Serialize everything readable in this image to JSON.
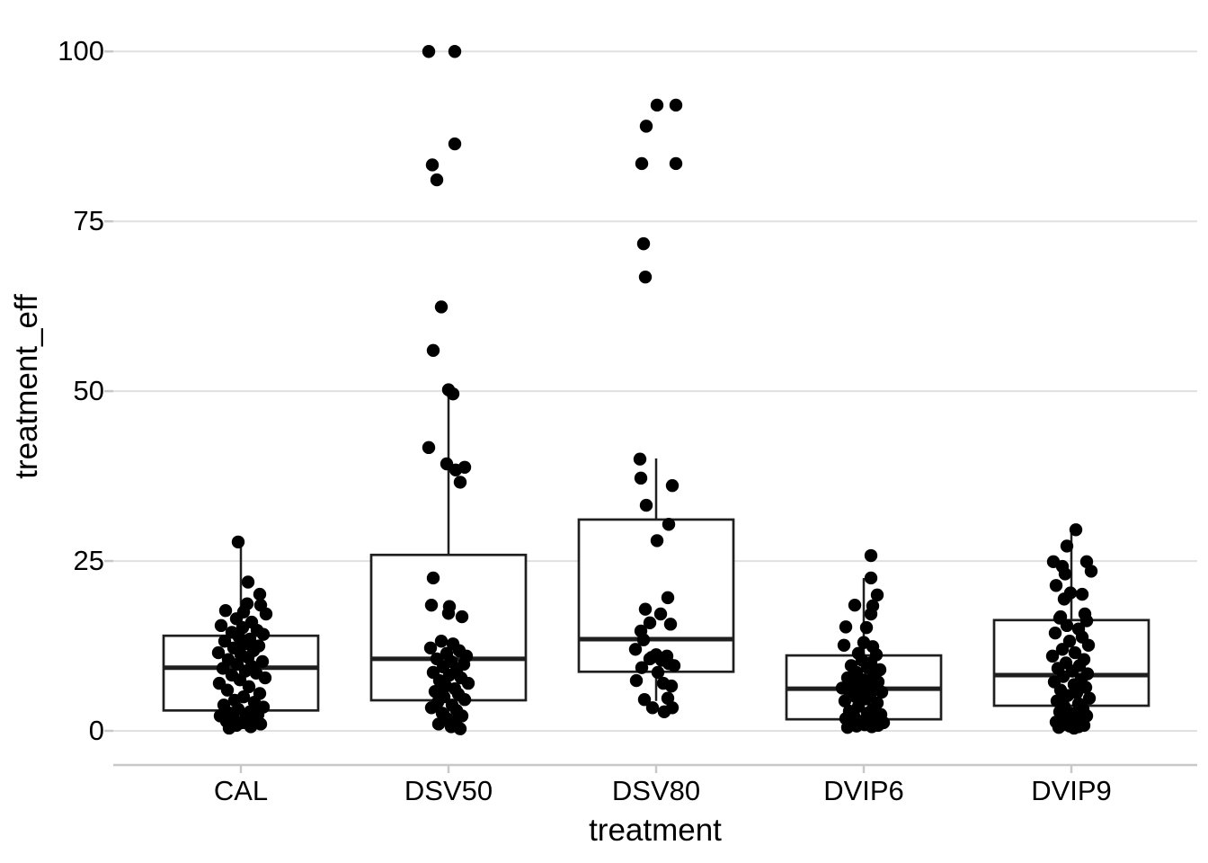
{
  "chart_data": {
    "type": "boxplot",
    "overlay": "jittered points",
    "title": "",
    "xlabel": "treatment",
    "ylabel": "treatment_eff",
    "categories": [
      "CAL",
      "DSV50",
      "DSV80",
      "DVIP6",
      "DVIP9"
    ],
    "yticks": [
      0,
      25,
      50,
      75,
      100
    ],
    "ylim": [
      0,
      102
    ],
    "grid": "horizontal major gridlines only",
    "legend": "none",
    "colors": {
      "background": "#ffffff",
      "gridline": "#e0e0e0",
      "axis_line": "#c8c8c8",
      "box_stroke": "#1f1f1f",
      "point_fill": "#000000",
      "text": "#000000"
    },
    "boxes": [
      {
        "category": "CAL",
        "q1": 3.0,
        "median": 9.3,
        "q3": 14.0,
        "whisker_low": 0.3,
        "whisker_high": 27.8
      },
      {
        "category": "DSV50",
        "q1": 4.5,
        "median": 10.6,
        "q3": 25.9,
        "whisker_low": 0.3,
        "whisker_high": 50.0
      },
      {
        "category": "DSV80",
        "q1": 8.7,
        "median": 13.5,
        "q3": 31.1,
        "whisker_low": 4.4,
        "whisker_high": 40.1
      },
      {
        "category": "DVIP6",
        "q1": 1.7,
        "median": 6.2,
        "q3": 11.1,
        "whisker_low": 0.3,
        "whisker_high": 22.5
      },
      {
        "category": "DVIP9",
        "q1": 3.7,
        "median": 8.2,
        "q3": 16.3,
        "whisker_low": 0.4,
        "whisker_high": 29.5
      }
    ],
    "points": {
      "CAL": [
        [
          -3,
          27.8
        ],
        [
          8,
          21.9
        ],
        [
          21,
          20.1
        ],
        [
          7,
          18.7
        ],
        [
          22,
          18.5
        ],
        [
          -17,
          17.7
        ],
        [
          3,
          17.5
        ],
        [
          28,
          17.2
        ],
        [
          -5,
          16.5
        ],
        [
          12,
          16.0
        ],
        [
          -22,
          15.5
        ],
        [
          2,
          15.2
        ],
        [
          18,
          14.8
        ],
        [
          -10,
          14.5
        ],
        [
          25,
          14.2
        ],
        [
          -2,
          13.8
        ],
        [
          10,
          13.5
        ],
        [
          -18,
          13.2
        ],
        [
          4,
          12.8
        ],
        [
          20,
          12.5
        ],
        [
          -8,
          12.2
        ],
        [
          14,
          11.8
        ],
        [
          -25,
          11.5
        ],
        [
          0,
          11.2
        ],
        [
          8,
          10.8
        ],
        [
          -14,
          10.5
        ],
        [
          24,
          10.2
        ],
        [
          -4,
          9.8
        ],
        [
          12,
          9.5
        ],
        [
          -20,
          9.2
        ],
        [
          5,
          8.8
        ],
        [
          17,
          8.5
        ],
        [
          -10,
          8.2
        ],
        [
          27,
          7.8
        ],
        [
          -1,
          7.5
        ],
        [
          -24,
          7.0
        ],
        [
          9,
          6.5
        ],
        [
          -15,
          6.0
        ],
        [
          21,
          5.5
        ],
        [
          3,
          5.0
        ],
        [
          -7,
          4.5
        ],
        [
          15,
          4.2
        ],
        [
          -19,
          3.8
        ],
        [
          25,
          3.5
        ],
        [
          -3,
          3.2
        ],
        [
          10,
          2.8
        ],
        [
          -12,
          2.6
        ],
        [
          19,
          2.4
        ],
        [
          -23,
          2.2
        ],
        [
          6,
          2.0
        ],
        [
          -8,
          1.8
        ],
        [
          14,
          1.6
        ],
        [
          -16,
          1.4
        ],
        [
          2,
          1.2
        ],
        [
          22,
          1.0
        ],
        [
          -5,
          0.8
        ],
        [
          11,
          0.6
        ],
        [
          -13,
          0.4
        ]
      ],
      "DSV50": [
        [
          -22,
          100
        ],
        [
          7,
          100
        ],
        [
          7,
          86.4
        ],
        [
          -18,
          83.3
        ],
        [
          -13,
          81.1
        ],
        [
          -8,
          62.4
        ],
        [
          -17,
          56.0
        ],
        [
          0,
          50.2
        ],
        [
          5,
          49.6
        ],
        [
          -22,
          41.7
        ],
        [
          -2,
          39.3
        ],
        [
          18,
          38.8
        ],
        [
          8,
          38.4
        ],
        [
          13,
          36.6
        ],
        [
          -17,
          22.5
        ],
        [
          -19,
          18.5
        ],
        [
          1,
          18.3
        ],
        [
          0,
          17.3
        ],
        [
          15,
          16.8
        ],
        [
          -8,
          13.2
        ],
        [
          5,
          12.8
        ],
        [
          -20,
          12.2
        ],
        [
          12,
          11.8
        ],
        [
          -2,
          11.4
        ],
        [
          20,
          11.0
        ],
        [
          -13,
          10.6
        ],
        [
          3,
          10.2
        ],
        [
          17,
          9.8
        ],
        [
          -6,
          9.4
        ],
        [
          9,
          9.0
        ],
        [
          -17,
          8.6
        ],
        [
          1,
          8.2
        ],
        [
          14,
          7.8
        ],
        [
          -10,
          7.4
        ],
        [
          22,
          7.0
        ],
        [
          -3,
          6.6
        ],
        [
          7,
          6.2
        ],
        [
          -15,
          5.8
        ],
        [
          11,
          5.4
        ],
        [
          -5,
          5.0
        ],
        [
          18,
          4.6
        ],
        [
          -12,
          4.2
        ],
        [
          4,
          3.8
        ],
        [
          -19,
          3.4
        ],
        [
          9,
          3.0
        ],
        [
          -7,
          2.6
        ],
        [
          15,
          2.2
        ],
        [
          -2,
          1.8
        ],
        [
          8,
          1.4
        ],
        [
          -11,
          1.0
        ],
        [
          3,
          0.6
        ],
        [
          13,
          0.3
        ]
      ],
      "DSV80": [
        [
          1,
          92.1
        ],
        [
          22,
          92.1
        ],
        [
          -11,
          89.0
        ],
        [
          -16,
          83.5
        ],
        [
          22,
          83.5
        ],
        [
          -14,
          71.7
        ],
        [
          -12,
          66.8
        ],
        [
          -18,
          40.0
        ],
        [
          -17,
          37.2
        ],
        [
          18,
          36.1
        ],
        [
          -11,
          33.2
        ],
        [
          14,
          30.4
        ],
        [
          1,
          28.0
        ],
        [
          13,
          19.6
        ],
        [
          -12,
          17.9
        ],
        [
          5,
          17.2
        ],
        [
          -7,
          15.9
        ],
        [
          16,
          15.7
        ],
        [
          -17,
          14.7
        ],
        [
          -14,
          13.4
        ],
        [
          -23,
          12.0
        ],
        [
          0,
          11.2
        ],
        [
          12,
          11.0
        ],
        [
          -5,
          10.8
        ],
        [
          -7,
          10.6
        ],
        [
          6,
          10.4
        ],
        [
          14,
          9.9
        ],
        [
          20,
          9.6
        ],
        [
          -16,
          9.3
        ],
        [
          2,
          8.6
        ],
        [
          -22,
          7.4
        ],
        [
          8,
          7.0
        ],
        [
          17,
          6.6
        ],
        [
          13,
          4.8
        ],
        [
          -13,
          4.6
        ],
        [
          -4,
          3.4
        ],
        [
          18,
          3.4
        ],
        [
          9,
          2.8
        ]
      ],
      "DVIP6": [
        [
          8,
          25.8
        ],
        [
          8,
          22.5
        ],
        [
          15,
          20.0
        ],
        [
          -10,
          18.5
        ],
        [
          10,
          18.4
        ],
        [
          8,
          17.2
        ],
        [
          -20,
          15.3
        ],
        [
          3,
          15.2
        ],
        [
          0,
          13.0
        ],
        [
          -22,
          12.6
        ],
        [
          10,
          12.4
        ],
        [
          -6,
          11.4
        ],
        [
          14,
          11.2
        ],
        [
          -2,
          10.4
        ],
        [
          8,
          10.0
        ],
        [
          -14,
          9.6
        ],
        [
          4,
          9.3
        ],
        [
          18,
          9.0
        ],
        [
          -8,
          8.6
        ],
        [
          11,
          8.2
        ],
        [
          -18,
          7.8
        ],
        [
          0,
          7.5
        ],
        [
          16,
          7.2
        ],
        [
          -11,
          6.9
        ],
        [
          5,
          6.6
        ],
        [
          -24,
          6.3
        ],
        [
          13,
          6.1
        ],
        [
          -4,
          5.9
        ],
        [
          20,
          5.7
        ],
        [
          -15,
          5.5
        ],
        [
          7,
          5.3
        ],
        [
          -9,
          5.0
        ],
        [
          2,
          4.7
        ],
        [
          -21,
          4.4
        ],
        [
          15,
          4.1
        ],
        [
          -6,
          3.6
        ],
        [
          10,
          3.2
        ],
        [
          -16,
          2.9
        ],
        [
          4,
          2.6
        ],
        [
          19,
          2.4
        ],
        [
          -11,
          2.2
        ],
        [
          7,
          2.0
        ],
        [
          -20,
          1.8
        ],
        [
          13,
          1.6
        ],
        [
          -3,
          1.4
        ],
        [
          22,
          1.2
        ],
        [
          -14,
          1.0
        ],
        [
          1,
          0.9
        ],
        [
          16,
          0.8
        ],
        [
          -8,
          0.7
        ],
        [
          9,
          0.6
        ],
        [
          -18,
          0.5
        ]
      ],
      "DVIP9": [
        [
          5,
          29.6
        ],
        [
          -5,
          27.2
        ],
        [
          -20,
          24.9
        ],
        [
          17,
          24.9
        ],
        [
          -10,
          24.2
        ],
        [
          22,
          23.5
        ],
        [
          -7,
          23.1
        ],
        [
          -17,
          21.4
        ],
        [
          -1,
          20.3
        ],
        [
          12,
          20.1
        ],
        [
          -8,
          19.4
        ],
        [
          15,
          17.2
        ],
        [
          -12,
          16.8
        ],
        [
          -13,
          16.6
        ],
        [
          17,
          16.2
        ],
        [
          -5,
          15.5
        ],
        [
          8,
          15.0
        ],
        [
          -18,
          14.4
        ],
        [
          12,
          13.8
        ],
        [
          -2,
          13.2
        ],
        [
          19,
          12.6
        ],
        [
          -10,
          12.0
        ],
        [
          4,
          11.5
        ],
        [
          -21,
          11.0
        ],
        [
          14,
          10.5
        ],
        [
          -6,
          10.0
        ],
        [
          9,
          9.6
        ],
        [
          -15,
          9.2
        ],
        [
          1,
          8.8
        ],
        [
          18,
          8.4
        ],
        [
          -9,
          8.0
        ],
        [
          11,
          7.6
        ],
        [
          -19,
          7.2
        ],
        [
          3,
          6.8
        ],
        [
          16,
          6.4
        ],
        [
          -12,
          6.0
        ],
        [
          6,
          5.6
        ],
        [
          -4,
          5.2
        ],
        [
          20,
          4.8
        ],
        [
          -16,
          4.4
        ],
        [
          8,
          4.0
        ],
        [
          -8,
          3.6
        ],
        [
          13,
          3.2
        ],
        [
          -13,
          2.8
        ],
        [
          2,
          2.5
        ],
        [
          17,
          2.2
        ],
        [
          -6,
          1.9
        ],
        [
          10,
          1.6
        ],
        [
          -17,
          1.3
        ],
        [
          5,
          1.1
        ],
        [
          -10,
          0.9
        ],
        [
          14,
          0.8
        ],
        [
          -2,
          0.7
        ],
        [
          8,
          0.6
        ],
        [
          -14,
          0.5
        ],
        [
          3,
          0.4
        ]
      ]
    }
  },
  "ytick_labels": {
    "t0": "0",
    "t25": "25",
    "t50": "50",
    "t75": "75",
    "t100": "100"
  }
}
